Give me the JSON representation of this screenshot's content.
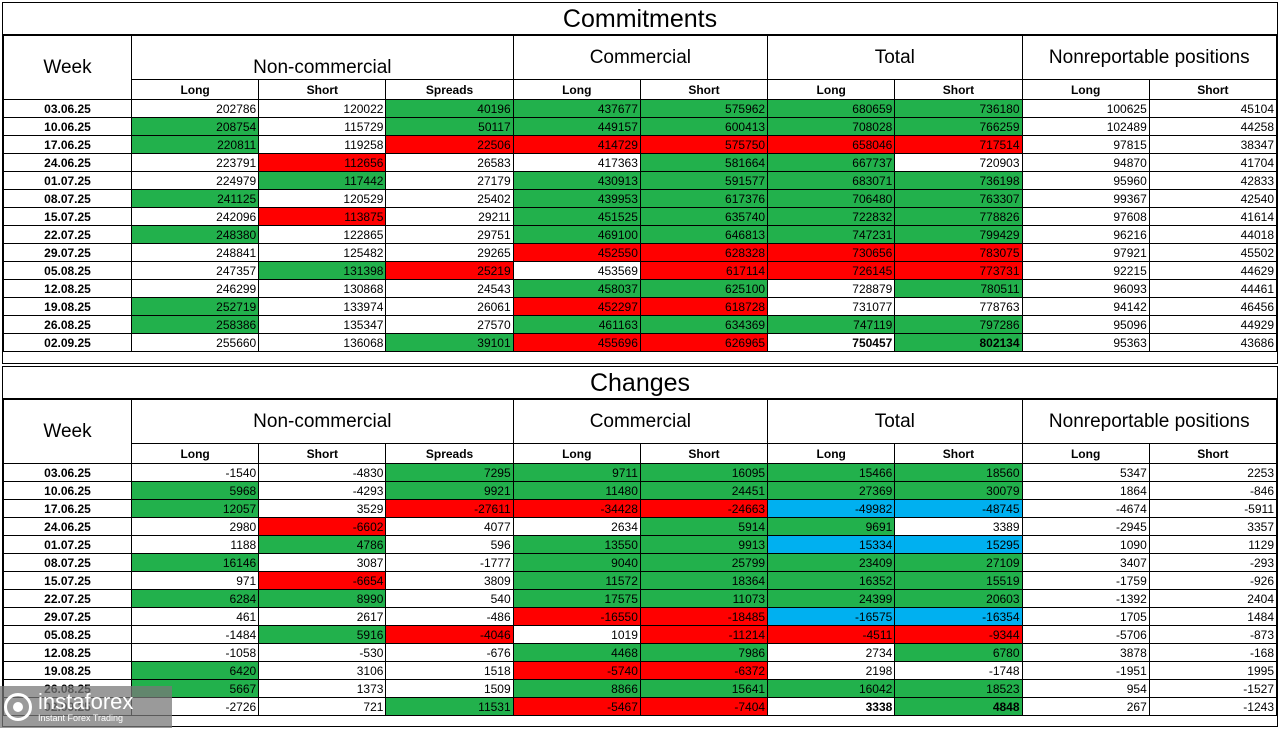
{
  "colors": {
    "green": "#22b14c",
    "red": "#ff0000",
    "blue": "#00b0f0"
  },
  "headers": {
    "week": "Week",
    "groups": [
      "Non-commercial",
      "Commercial",
      "Total",
      "Nonreportable positions"
    ],
    "sub": [
      "Long",
      "Short",
      "Spreads",
      "Long",
      "Short",
      "Long",
      "Short",
      "Long",
      "Short"
    ]
  },
  "commitments": {
    "title": "Commitments",
    "rows": [
      {
        "week": "03.06.25",
        "cells": [
          [
            "202786",
            ""
          ],
          [
            "120022",
            ""
          ],
          [
            "40196",
            "g"
          ],
          [
            "437677",
            "g"
          ],
          [
            "575962",
            "g"
          ],
          [
            "680659",
            "g"
          ],
          [
            "736180",
            "g"
          ],
          [
            "100625",
            ""
          ],
          [
            "45104",
            ""
          ]
        ]
      },
      {
        "week": "10.06.25",
        "cells": [
          [
            "208754",
            "g"
          ],
          [
            "115729",
            ""
          ],
          [
            "50117",
            "g"
          ],
          [
            "449157",
            "g"
          ],
          [
            "600413",
            "g"
          ],
          [
            "708028",
            "g"
          ],
          [
            "766259",
            "g"
          ],
          [
            "102489",
            ""
          ],
          [
            "44258",
            ""
          ]
        ]
      },
      {
        "week": "17.06.25",
        "cells": [
          [
            "220811",
            "g"
          ],
          [
            "119258",
            ""
          ],
          [
            "22506",
            "r"
          ],
          [
            "414729",
            "r"
          ],
          [
            "575750",
            "r"
          ],
          [
            "658046",
            "r"
          ],
          [
            "717514",
            "r"
          ],
          [
            "97815",
            ""
          ],
          [
            "38347",
            ""
          ]
        ]
      },
      {
        "week": "24.06.25",
        "cells": [
          [
            "223791",
            ""
          ],
          [
            "112656",
            "r"
          ],
          [
            "26583",
            ""
          ],
          [
            "417363",
            ""
          ],
          [
            "581664",
            "g"
          ],
          [
            "667737",
            "g"
          ],
          [
            "720903",
            ""
          ],
          [
            "94870",
            ""
          ],
          [
            "41704",
            ""
          ]
        ]
      },
      {
        "week": "01.07.25",
        "cells": [
          [
            "224979",
            ""
          ],
          [
            "117442",
            "g"
          ],
          [
            "27179",
            ""
          ],
          [
            "430913",
            "g"
          ],
          [
            "591577",
            "g"
          ],
          [
            "683071",
            "g"
          ],
          [
            "736198",
            "g"
          ],
          [
            "95960",
            ""
          ],
          [
            "42833",
            ""
          ]
        ]
      },
      {
        "week": "08.07.25",
        "cells": [
          [
            "241125",
            "g"
          ],
          [
            "120529",
            ""
          ],
          [
            "25402",
            ""
          ],
          [
            "439953",
            "g"
          ],
          [
            "617376",
            "g"
          ],
          [
            "706480",
            "g"
          ],
          [
            "763307",
            "g"
          ],
          [
            "99367",
            ""
          ],
          [
            "42540",
            ""
          ]
        ]
      },
      {
        "week": "15.07.25",
        "cells": [
          [
            "242096",
            ""
          ],
          [
            "113875",
            "r"
          ],
          [
            "29211",
            ""
          ],
          [
            "451525",
            "g"
          ],
          [
            "635740",
            "g"
          ],
          [
            "722832",
            "g"
          ],
          [
            "778826",
            "g"
          ],
          [
            "97608",
            ""
          ],
          [
            "41614",
            ""
          ]
        ]
      },
      {
        "week": "22.07.25",
        "cells": [
          [
            "248380",
            "g"
          ],
          [
            "122865",
            ""
          ],
          [
            "29751",
            ""
          ],
          [
            "469100",
            "g"
          ],
          [
            "646813",
            "g"
          ],
          [
            "747231",
            "g"
          ],
          [
            "799429",
            "g"
          ],
          [
            "96216",
            ""
          ],
          [
            "44018",
            ""
          ]
        ]
      },
      {
        "week": "29.07.25",
        "cells": [
          [
            "248841",
            ""
          ],
          [
            "125482",
            ""
          ],
          [
            "29265",
            ""
          ],
          [
            "452550",
            "r"
          ],
          [
            "628328",
            "r"
          ],
          [
            "730656",
            "r"
          ],
          [
            "783075",
            "r"
          ],
          [
            "97921",
            ""
          ],
          [
            "45502",
            ""
          ]
        ]
      },
      {
        "week": "05.08.25",
        "cells": [
          [
            "247357",
            ""
          ],
          [
            "131398",
            "g"
          ],
          [
            "25219",
            "r"
          ],
          [
            "453569",
            ""
          ],
          [
            "617114",
            "r"
          ],
          [
            "726145",
            "r"
          ],
          [
            "773731",
            "r"
          ],
          [
            "92215",
            ""
          ],
          [
            "44629",
            ""
          ]
        ]
      },
      {
        "week": "12.08.25",
        "cells": [
          [
            "246299",
            ""
          ],
          [
            "130868",
            ""
          ],
          [
            "24543",
            ""
          ],
          [
            "458037",
            "g"
          ],
          [
            "625100",
            "g"
          ],
          [
            "728879",
            ""
          ],
          [
            "780511",
            "g"
          ],
          [
            "96093",
            ""
          ],
          [
            "44461",
            ""
          ]
        ]
      },
      {
        "week": "19.08.25",
        "cells": [
          [
            "252719",
            "g"
          ],
          [
            "133974",
            ""
          ],
          [
            "26061",
            ""
          ],
          [
            "452297",
            "r"
          ],
          [
            "618728",
            "r"
          ],
          [
            "731077",
            ""
          ],
          [
            "778763",
            ""
          ],
          [
            "94142",
            ""
          ],
          [
            "46456",
            ""
          ]
        ]
      },
      {
        "week": "26.08.25",
        "cells": [
          [
            "258386",
            "g"
          ],
          [
            "135347",
            ""
          ],
          [
            "27570",
            ""
          ],
          [
            "461163",
            "g"
          ],
          [
            "634369",
            "g"
          ],
          [
            "747119",
            "g"
          ],
          [
            "797286",
            "g"
          ],
          [
            "95096",
            ""
          ],
          [
            "44929",
            ""
          ]
        ]
      },
      {
        "week": "02.09.25",
        "cells": [
          [
            "255660",
            ""
          ],
          [
            "136068",
            ""
          ],
          [
            "39101",
            "g"
          ],
          [
            "455696",
            "r"
          ],
          [
            "626965",
            "r"
          ],
          [
            "750457",
            "b0"
          ],
          [
            "802134",
            "gb"
          ],
          [
            "95363",
            ""
          ],
          [
            "43686",
            ""
          ]
        ]
      }
    ]
  },
  "changes": {
    "title": "Changes",
    "rows": [
      {
        "week": "03.06.25",
        "cells": [
          [
            "-1540",
            ""
          ],
          [
            "-4830",
            ""
          ],
          [
            "7295",
            "g"
          ],
          [
            "9711",
            "g"
          ],
          [
            "16095",
            "g"
          ],
          [
            "15466",
            "g"
          ],
          [
            "18560",
            "g"
          ],
          [
            "5347",
            ""
          ],
          [
            "2253",
            ""
          ]
        ]
      },
      {
        "week": "10.06.25",
        "cells": [
          [
            "5968",
            "g"
          ],
          [
            "-4293",
            ""
          ],
          [
            "9921",
            "g"
          ],
          [
            "11480",
            "g"
          ],
          [
            "24451",
            "g"
          ],
          [
            "27369",
            "g"
          ],
          [
            "30079",
            "g"
          ],
          [
            "1864",
            ""
          ],
          [
            "-846",
            ""
          ]
        ]
      },
      {
        "week": "17.06.25",
        "cells": [
          [
            "12057",
            "g"
          ],
          [
            "3529",
            ""
          ],
          [
            "-27611",
            "r"
          ],
          [
            "-34428",
            "r"
          ],
          [
            "-24663",
            "r"
          ],
          [
            "-49982",
            "b"
          ],
          [
            "-48745",
            "b"
          ],
          [
            "-4674",
            ""
          ],
          [
            "-5911",
            ""
          ]
        ]
      },
      {
        "week": "24.06.25",
        "cells": [
          [
            "2980",
            ""
          ],
          [
            "-6602",
            "r"
          ],
          [
            "4077",
            ""
          ],
          [
            "2634",
            ""
          ],
          [
            "5914",
            "g"
          ],
          [
            "9691",
            "g"
          ],
          [
            "3389",
            ""
          ],
          [
            "-2945",
            ""
          ],
          [
            "3357",
            ""
          ]
        ]
      },
      {
        "week": "01.07.25",
        "cells": [
          [
            "1188",
            ""
          ],
          [
            "4786",
            "g"
          ],
          [
            "596",
            ""
          ],
          [
            "13550",
            "g"
          ],
          [
            "9913",
            "g"
          ],
          [
            "15334",
            "b"
          ],
          [
            "15295",
            "b"
          ],
          [
            "1090",
            ""
          ],
          [
            "1129",
            ""
          ]
        ]
      },
      {
        "week": "08.07.25",
        "cells": [
          [
            "16146",
            "g"
          ],
          [
            "3087",
            ""
          ],
          [
            "-1777",
            ""
          ],
          [
            "9040",
            "g"
          ],
          [
            "25799",
            "g"
          ],
          [
            "23409",
            "g"
          ],
          [
            "27109",
            "g"
          ],
          [
            "3407",
            ""
          ],
          [
            "-293",
            ""
          ]
        ]
      },
      {
        "week": "15.07.25",
        "cells": [
          [
            "971",
            ""
          ],
          [
            "-6654",
            "r"
          ],
          [
            "3809",
            ""
          ],
          [
            "11572",
            "g"
          ],
          [
            "18364",
            "g"
          ],
          [
            "16352",
            "g"
          ],
          [
            "15519",
            "g"
          ],
          [
            "-1759",
            ""
          ],
          [
            "-926",
            ""
          ]
        ]
      },
      {
        "week": "22.07.25",
        "cells": [
          [
            "6284",
            "g"
          ],
          [
            "8990",
            "g"
          ],
          [
            "540",
            ""
          ],
          [
            "17575",
            "g"
          ],
          [
            "11073",
            "g"
          ],
          [
            "24399",
            "g"
          ],
          [
            "20603",
            "g"
          ],
          [
            "-1392",
            ""
          ],
          [
            "2404",
            ""
          ]
        ]
      },
      {
        "week": "29.07.25",
        "cells": [
          [
            "461",
            ""
          ],
          [
            "2617",
            ""
          ],
          [
            "-486",
            ""
          ],
          [
            "-16550",
            "r"
          ],
          [
            "-18485",
            "r"
          ],
          [
            "-16575",
            "b"
          ],
          [
            "-16354",
            "b"
          ],
          [
            "1705",
            ""
          ],
          [
            "1484",
            ""
          ]
        ]
      },
      {
        "week": "05.08.25",
        "cells": [
          [
            "-1484",
            ""
          ],
          [
            "5916",
            "g"
          ],
          [
            "-4046",
            "r"
          ],
          [
            "1019",
            ""
          ],
          [
            "-11214",
            "r"
          ],
          [
            "-4511",
            "r"
          ],
          [
            "-9344",
            "r"
          ],
          [
            "-5706",
            ""
          ],
          [
            "-873",
            ""
          ]
        ]
      },
      {
        "week": "12.08.25",
        "cells": [
          [
            "-1058",
            ""
          ],
          [
            "-530",
            ""
          ],
          [
            "-676",
            ""
          ],
          [
            "4468",
            "g"
          ],
          [
            "7986",
            "g"
          ],
          [
            "2734",
            ""
          ],
          [
            "6780",
            "g"
          ],
          [
            "3878",
            ""
          ],
          [
            "-168",
            ""
          ]
        ]
      },
      {
        "week": "19.08.25",
        "cells": [
          [
            "6420",
            "g"
          ],
          [
            "3106",
            ""
          ],
          [
            "1518",
            ""
          ],
          [
            "-5740",
            "r"
          ],
          [
            "-6372",
            "r"
          ],
          [
            "2198",
            ""
          ],
          [
            "-1748",
            ""
          ],
          [
            "-1951",
            ""
          ],
          [
            "1995",
            ""
          ]
        ]
      },
      {
        "week": "26.08.25",
        "cells": [
          [
            "5667",
            "g"
          ],
          [
            "1373",
            ""
          ],
          [
            "1509",
            ""
          ],
          [
            "8866",
            "g"
          ],
          [
            "15641",
            "g"
          ],
          [
            "16042",
            "g"
          ],
          [
            "18523",
            "g"
          ],
          [
            "954",
            ""
          ],
          [
            "-1527",
            ""
          ]
        ]
      },
      {
        "week": "02.09.25",
        "cells": [
          [
            "-2726",
            ""
          ],
          [
            "721",
            ""
          ],
          [
            "11531",
            "g"
          ],
          [
            "-5467",
            "r"
          ],
          [
            "-7404",
            "r"
          ],
          [
            "3338",
            "b0"
          ],
          [
            "4848",
            "gb"
          ],
          [
            "267",
            ""
          ],
          [
            "-1243",
            ""
          ]
        ]
      }
    ]
  },
  "logo": {
    "name": "instaforex",
    "tagline": "Instant Forex Trading"
  }
}
